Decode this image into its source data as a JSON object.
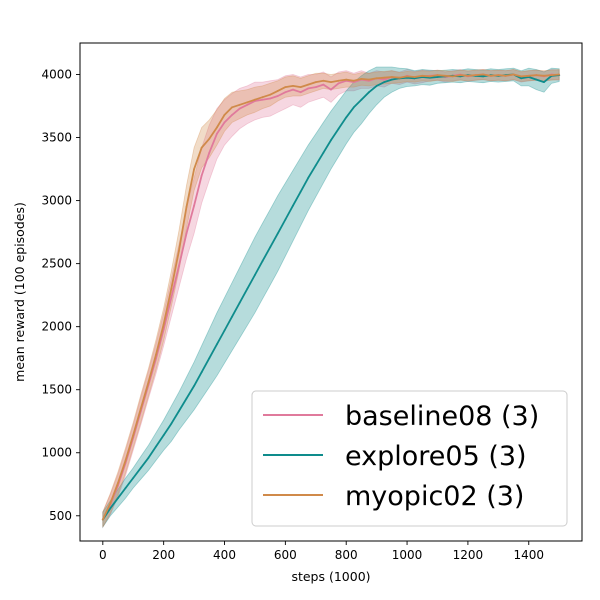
{
  "chart_data": {
    "type": "line",
    "title": "",
    "xlabel": "steps (1000)",
    "ylabel": "mean reward (100 episodes)",
    "xlim": [
      -75,
      1575
    ],
    "ylim": [
      300,
      4250
    ],
    "x_ticks": [
      0,
      200,
      400,
      600,
      800,
      1000,
      1200,
      1400
    ],
    "y_ticks": [
      500,
      1000,
      1500,
      2000,
      2500,
      3000,
      3500,
      4000
    ],
    "legend_position": "lower right",
    "grid": false,
    "x": [
      0,
      25,
      50,
      75,
      100,
      125,
      150,
      175,
      200,
      225,
      250,
      275,
      300,
      325,
      350,
      375,
      400,
      425,
      450,
      475,
      500,
      525,
      550,
      575,
      600,
      625,
      650,
      675,
      700,
      725,
      750,
      775,
      800,
      825,
      850,
      875,
      900,
      925,
      950,
      975,
      1000,
      1025,
      1050,
      1075,
      1100,
      1125,
      1150,
      1175,
      1200,
      1225,
      1250,
      1275,
      1300,
      1325,
      1350,
      1375,
      1400,
      1425,
      1450,
      1475,
      1500
    ],
    "series": [
      {
        "name": "baseline08 (3)",
        "color": "#e07a9c",
        "values": [
          470,
          590,
          740,
          920,
          1120,
          1330,
          1540,
          1750,
          1980,
          2230,
          2480,
          2740,
          2960,
          3200,
          3380,
          3530,
          3620,
          3680,
          3730,
          3760,
          3790,
          3800,
          3810,
          3830,
          3860,
          3880,
          3860,
          3890,
          3900,
          3920,
          3880,
          3930,
          3950,
          3940,
          3960,
          3950,
          3970,
          3960,
          3980,
          3970,
          3990,
          3975,
          3985,
          3990,
          3995,
          3980,
          3990,
          4000,
          3985,
          3995,
          4000,
          3990,
          3995,
          3990,
          4000,
          3980,
          3990,
          3995,
          3985,
          4000,
          3995
        ],
        "band": [
          60,
          80,
          90,
          100,
          100,
          110,
          110,
          120,
          130,
          150,
          170,
          200,
          220,
          220,
          220,
          200,
          180,
          170,
          160,
          150,
          150,
          140,
          140,
          130,
          130,
          120,
          120,
          110,
          100,
          100,
          100,
          90,
          80,
          70,
          70,
          60,
          60,
          60,
          50,
          50,
          50,
          50,
          50,
          40,
          40,
          40,
          40,
          40,
          40,
          40,
          40,
          40,
          40,
          40,
          40,
          40,
          40,
          40,
          40,
          40,
          40
        ]
      },
      {
        "name": "explore05 (3)",
        "color": "#0e8c8c",
        "values": [
          470,
          560,
          640,
          720,
          800,
          880,
          960,
          1050,
          1140,
          1230,
          1330,
          1430,
          1530,
          1640,
          1750,
          1860,
          1970,
          2080,
          2190,
          2300,
          2410,
          2520,
          2630,
          2740,
          2850,
          2960,
          3070,
          3180,
          3280,
          3380,
          3480,
          3570,
          3660,
          3740,
          3800,
          3860,
          3910,
          3940,
          3960,
          3970,
          3975,
          3970,
          3980,
          3975,
          3980,
          3985,
          3990,
          3985,
          3995,
          3990,
          3985,
          3995,
          3990,
          3995,
          4000,
          3970,
          3980,
          3960,
          3940,
          3990,
          3995
        ],
        "band": [
          60,
          60,
          70,
          80,
          80,
          90,
          100,
          110,
          120,
          140,
          150,
          170,
          190,
          210,
          230,
          250,
          260,
          270,
          280,
          290,
          300,
          300,
          300,
          300,
          290,
          280,
          270,
          260,
          250,
          240,
          230,
          220,
          210,
          200,
          190,
          170,
          150,
          120,
          100,
          80,
          70,
          60,
          60,
          60,
          50,
          50,
          50,
          50,
          50,
          50,
          50,
          50,
          50,
          50,
          50,
          60,
          70,
          80,
          80,
          60,
          50
        ]
      },
      {
        "name": "myopic02 (3)",
        "color": "#d08a4a",
        "values": [
          470,
          600,
          760,
          940,
          1140,
          1350,
          1560,
          1780,
          2020,
          2300,
          2600,
          2950,
          3250,
          3420,
          3490,
          3580,
          3680,
          3740,
          3760,
          3780,
          3800,
          3820,
          3840,
          3870,
          3900,
          3910,
          3900,
          3920,
          3940,
          3950,
          3940,
          3950,
          3960,
          3950,
          3965,
          3960,
          3970,
          3975,
          3980,
          3975,
          3985,
          3980,
          3990,
          3985,
          3995,
          3990,
          3985,
          3995,
          3990,
          3995,
          4000,
          3990,
          3995,
          3990,
          4000,
          3985,
          3990,
          3995,
          3990,
          3995,
          4000
        ],
        "band": [
          60,
          80,
          90,
          100,
          100,
          110,
          110,
          120,
          130,
          140,
          160,
          170,
          170,
          160,
          150,
          140,
          130,
          120,
          110,
          100,
          100,
          90,
          90,
          80,
          80,
          80,
          70,
          70,
          70,
          60,
          60,
          60,
          60,
          50,
          50,
          50,
          50,
          50,
          50,
          40,
          40,
          40,
          40,
          40,
          40,
          40,
          40,
          40,
          40,
          40,
          40,
          40,
          40,
          40,
          40,
          40,
          40,
          40,
          40,
          40,
          40
        ]
      }
    ]
  }
}
